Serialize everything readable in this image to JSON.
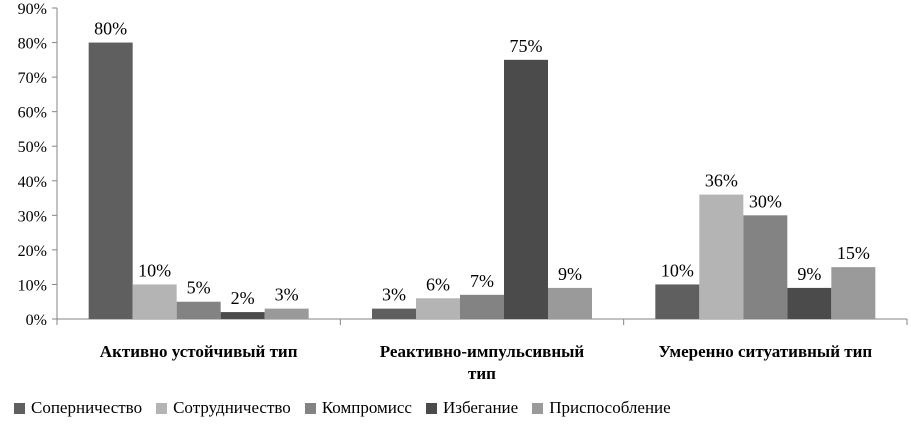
{
  "chart_data": {
    "type": "bar",
    "categories": [
      [
        "Активно устойчивый тип"
      ],
      [
        "Реактивно-импульсивный",
        "тип"
      ],
      [
        "Умеренно ситуативный тип"
      ]
    ],
    "series": [
      {
        "name": "Соперничество",
        "color": "#5f5f5f",
        "values": [
          80,
          3,
          10
        ]
      },
      {
        "name": "Сотрудничество",
        "color": "#b4b4b4",
        "values": [
          10,
          6,
          36
        ]
      },
      {
        "name": "Компромисс",
        "color": "#838383",
        "values": [
          5,
          7,
          30
        ]
      },
      {
        "name": "Избегание",
        "color": "#4b4b4b",
        "values": [
          2,
          75,
          9
        ]
      },
      {
        "name": "Приспособление",
        "color": "#9a9a9a",
        "values": [
          3,
          9,
          15
        ]
      }
    ],
    "ylim": [
      0,
      90
    ],
    "ytick_step": 10,
    "ytick_suffix": "%",
    "value_suffix": "%",
    "grid": false,
    "legend_position": "bottom"
  }
}
